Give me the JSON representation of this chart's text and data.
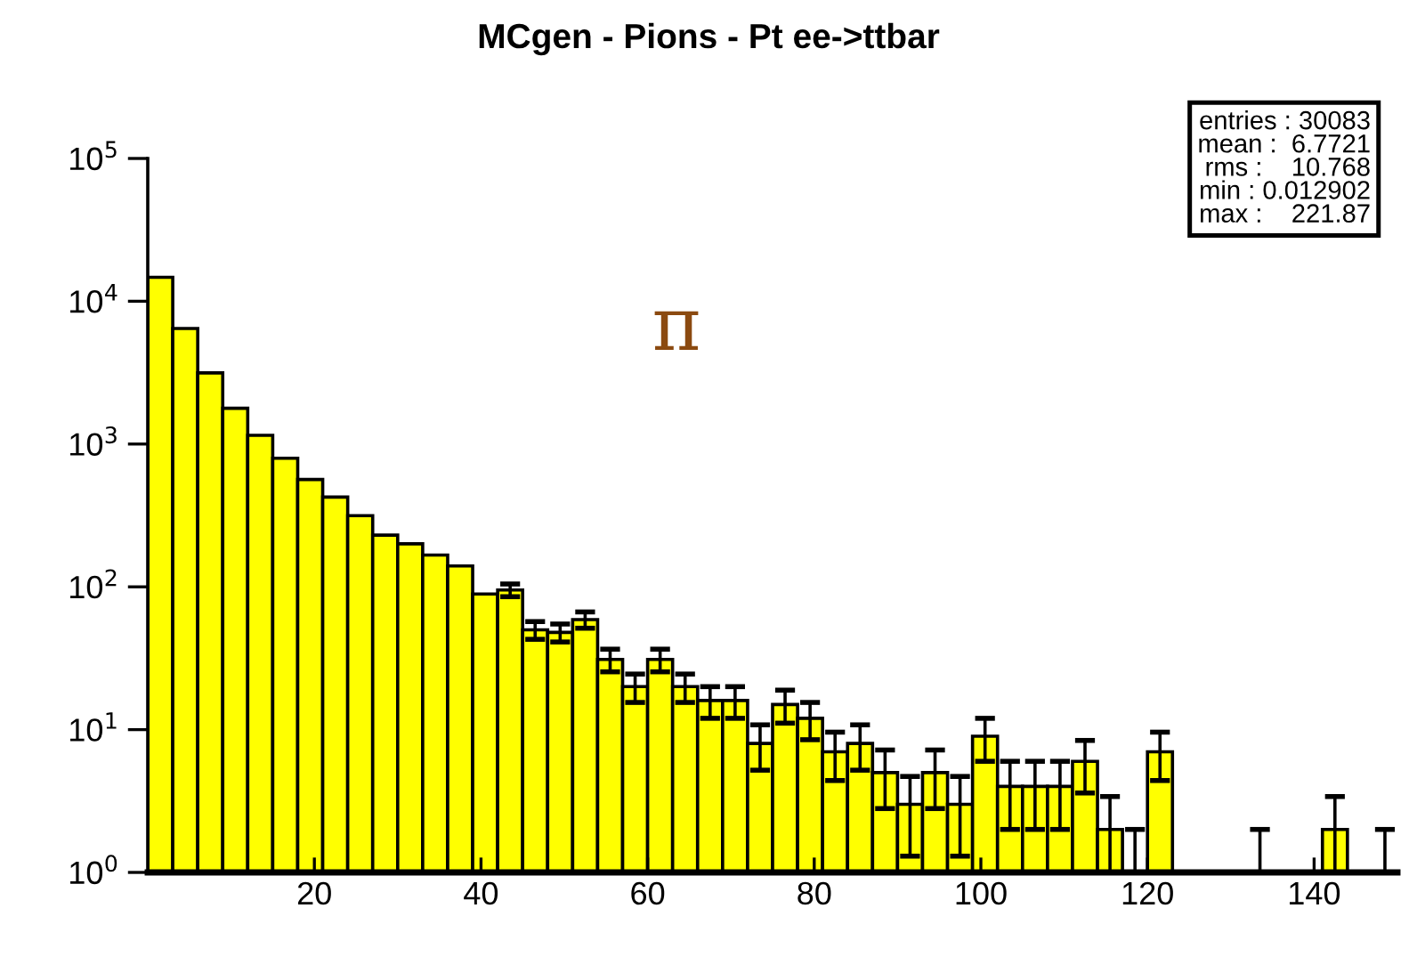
{
  "chart_data": {
    "type": "histogram",
    "title": "MCgen - Pions - Pt ee->ttbar",
    "bins": [
      0,
      3,
      6,
      9,
      12,
      15,
      18,
      21,
      24,
      27,
      30,
      33,
      36,
      39,
      42,
      45,
      48,
      51,
      54,
      57,
      60,
      63,
      66,
      69,
      72,
      75,
      78,
      81,
      84,
      87,
      90,
      93,
      96,
      99,
      102,
      105,
      108,
      111,
      114,
      117,
      120,
      123,
      126,
      129,
      132,
      135,
      138,
      141,
      144,
      147,
      150
    ],
    "values": [
      14700,
      6450,
      3150,
      1780,
      1150,
      795,
      565,
      425,
      315,
      230,
      200,
      167,
      140,
      89,
      95,
      50,
      48,
      59,
      31,
      20,
      31,
      20,
      16,
      16,
      8,
      15,
      12,
      7,
      8,
      5,
      3,
      5,
      3,
      9,
      4,
      4,
      4,
      6,
      2,
      1,
      7,
      null,
      null,
      null,
      1,
      null,
      null,
      2,
      null,
      1
    ],
    "errors": [
      null,
      null,
      null,
      null,
      null,
      null,
      null,
      null,
      null,
      null,
      null,
      null,
      null,
      null,
      [
        85.3,
        104.7
      ],
      [
        42.9,
        57.1
      ],
      [
        41.1,
        54.9
      ],
      [
        51.3,
        66.7
      ],
      [
        25.4,
        36.6
      ],
      [
        15.5,
        24.5
      ],
      [
        25.4,
        36.6
      ],
      [
        15.5,
        24.5
      ],
      [
        12,
        20
      ],
      [
        12,
        20
      ],
      [
        5.2,
        10.8
      ],
      [
        11.1,
        18.9
      ],
      [
        8.5,
        15.5
      ],
      [
        4.4,
        9.6
      ],
      [
        5.2,
        10.8
      ],
      [
        2.8,
        7.2
      ],
      [
        1.3,
        4.7
      ],
      [
        2.8,
        7.2
      ],
      [
        1.3,
        4.7
      ],
      [
        6,
        12
      ],
      [
        2,
        6
      ],
      [
        2,
        6
      ],
      [
        2,
        6
      ],
      [
        3.6,
        8.4
      ],
      [
        1,
        3.4
      ],
      [
        1,
        2
      ],
      [
        4.4,
        9.6
      ],
      null,
      null,
      null,
      [
        1,
        2
      ],
      null,
      null,
      [
        1,
        3.4
      ],
      null,
      [
        1,
        2
      ]
    ],
    "color": "#ffff00",
    "log": "y",
    "xlim": [
      0,
      150
    ],
    "xticks": [
      20,
      40,
      60,
      80,
      100,
      120,
      140
    ],
    "ylim": [
      1,
      100000
    ],
    "yticks": [
      {
        "value": 1,
        "label": "10$^{0}$"
      },
      {
        "value": 10,
        "label": "10$^{1}$"
      },
      {
        "value": 100,
        "label": "10$^{2}$"
      },
      {
        "value": 1000,
        "label": "10$^{3}$"
      },
      {
        "value": 10000,
        "label": "10$^{4}$"
      },
      {
        "value": 100000,
        "label": "10$^{5}$"
      }
    ],
    "grid": false,
    "legend": false,
    "annotations": [
      "π",
      "entries : 30083",
      "mean :  6.7721",
      "rms :    10.768",
      "min : 0.012902",
      "max :    221.87"
    ]
  }
}
